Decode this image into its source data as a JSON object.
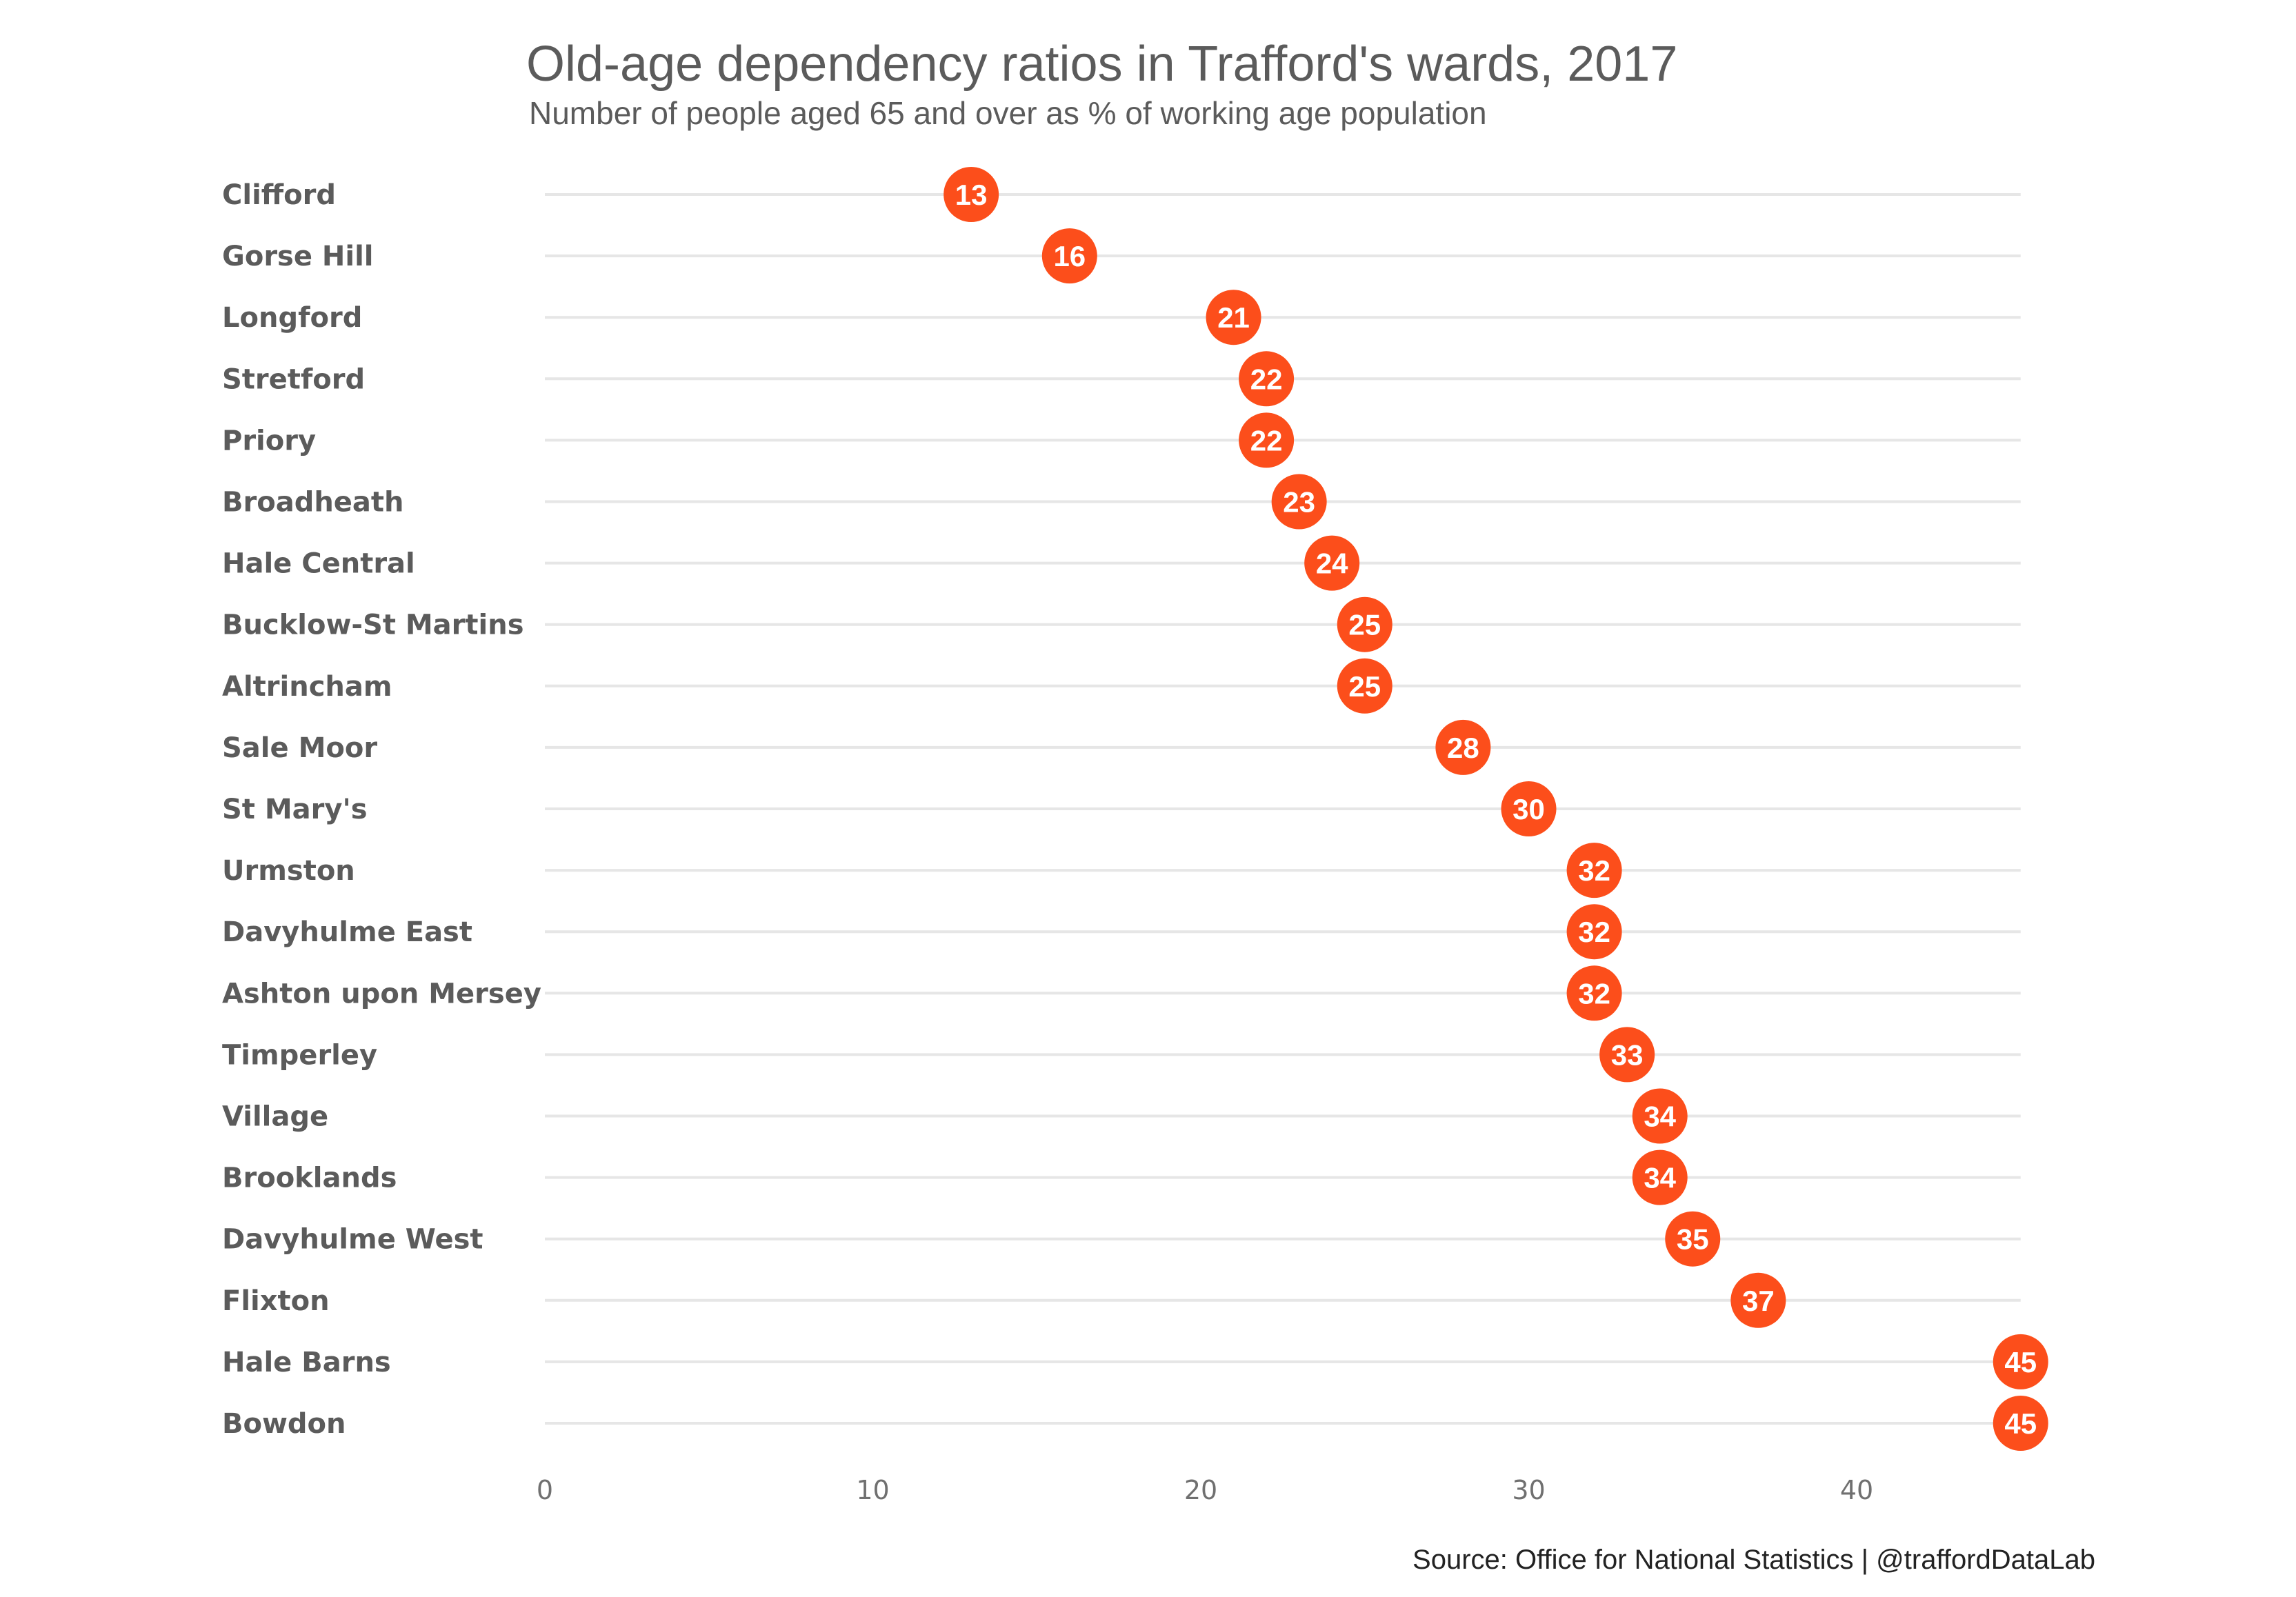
{
  "colors": {
    "dot": "#FC4E1B",
    "dot_text": "#ffffff",
    "row_line": "#e6e6e6",
    "text": "#5b5b5b"
  },
  "chart_data": {
    "type": "scatter",
    "title": "Old-age dependency ratios in Trafford's wards, 2017",
    "subtitle": "Number of people aged 65 and over as % of working age population",
    "caption": "Source: Office for National Statistics  |  @traffordDataLab",
    "xlabel": "",
    "ylabel": "",
    "xlim": [
      0,
      45
    ],
    "xticks": [
      0,
      10,
      20,
      30,
      40
    ],
    "grid": false,
    "categories": [
      "Clifford",
      "Gorse Hill",
      "Longford",
      "Stretford",
      "Priory",
      "Broadheath",
      "Hale Central",
      "Bucklow-St Martins",
      "Altrincham",
      "Sale Moor",
      "St Mary's",
      "Urmston",
      "Davyhulme East",
      "Ashton upon Mersey",
      "Timperley",
      "Village",
      "Brooklands",
      "Davyhulme West",
      "Flixton",
      "Hale Barns",
      "Bowdon"
    ],
    "values": [
      13,
      16,
      21,
      22,
      22,
      23,
      24,
      25,
      25,
      28,
      30,
      32,
      32,
      32,
      33,
      34,
      34,
      35,
      37,
      45,
      45
    ]
  }
}
